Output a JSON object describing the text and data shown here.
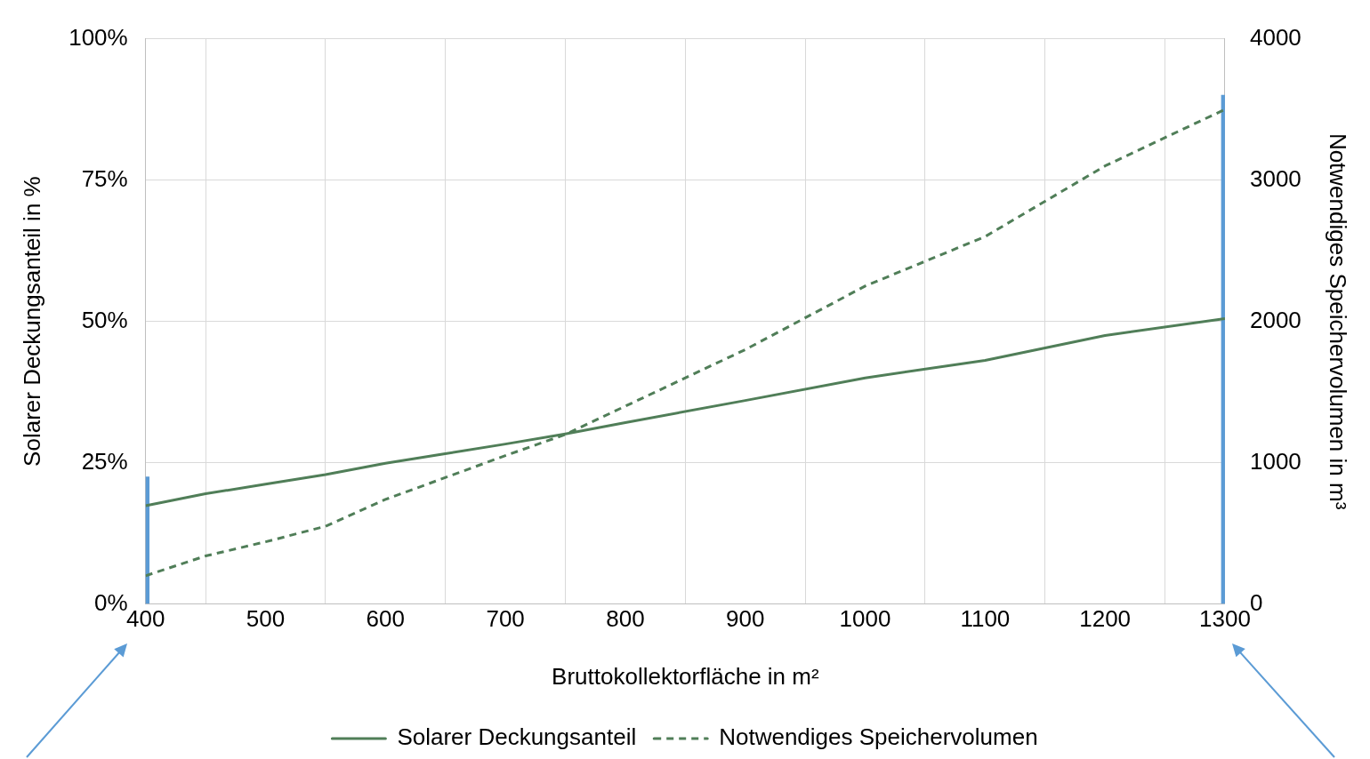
{
  "chart_data": {
    "type": "line",
    "xlabel": "Bruttokollektorfläche in m²",
    "ylabel": "Solarer Deckungsanteil in %",
    "y2label": "Notwendiges Speichervolumen in m³",
    "x": [
      400,
      450,
      500,
      550,
      600,
      700,
      750,
      800,
      900,
      1000,
      1100,
      1200,
      1300
    ],
    "xlim": [
      400,
      1300
    ],
    "xticks": [
      400,
      500,
      600,
      700,
      800,
      900,
      1000,
      1100,
      1200,
      1300
    ],
    "ylim": [
      0,
      100
    ],
    "yticks": [
      {
        "value": 0,
        "label": "0%"
      },
      {
        "value": 25,
        "label": "25%"
      },
      {
        "value": 50,
        "label": "50%"
      },
      {
        "value": 75,
        "label": "75%"
      },
      {
        "value": 100,
        "label": "100%"
      }
    ],
    "y2lim": [
      0,
      4000
    ],
    "y2ticks": [
      0,
      1000,
      2000,
      3000,
      4000
    ],
    "series": [
      {
        "name": "Solarer Deckungsanteil",
        "color": "#507e58",
        "line_style": "solid",
        "values": [
          17.4,
          19.5,
          21.2,
          22.9,
          24.9,
          28.3,
          30.1,
          32.1,
          36.0,
          40.0,
          43.1,
          47.5,
          50.5
        ]
      },
      {
        "name": "Notwendiges Speichervolumen",
        "color": "#507e58",
        "line_style": "dashed",
        "axis": "y2",
        "values": [
          200,
          340,
          440,
          550,
          740,
          1050,
          1200,
          1400,
          1800,
          2250,
          2600,
          3100,
          3500
        ]
      },
      {
        "type": "bar",
        "color": "#5b9bd5",
        "x": [
          400,
          1300
        ],
        "values": [
          22.5,
          90
        ]
      }
    ],
    "grid": true,
    "legend": "bottom"
  }
}
